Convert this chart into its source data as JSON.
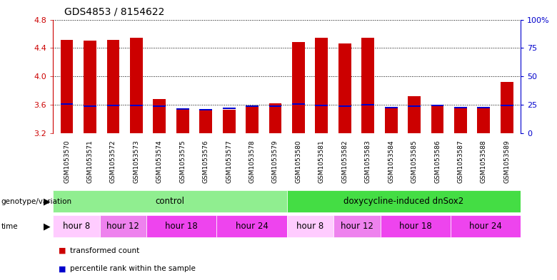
{
  "title": "GDS4853 / 8154622",
  "samples": [
    "GSM1053570",
    "GSM1053571",
    "GSM1053572",
    "GSM1053573",
    "GSM1053574",
    "GSM1053575",
    "GSM1053576",
    "GSM1053577",
    "GSM1053578",
    "GSM1053579",
    "GSM1053580",
    "GSM1053581",
    "GSM1053582",
    "GSM1053583",
    "GSM1053584",
    "GSM1053585",
    "GSM1053586",
    "GSM1053587",
    "GSM1053588",
    "GSM1053589"
  ],
  "red_values": [
    4.52,
    4.51,
    4.52,
    4.55,
    3.68,
    3.53,
    3.53,
    3.53,
    3.58,
    3.62,
    4.49,
    4.55,
    4.46,
    4.55,
    3.57,
    3.72,
    3.6,
    3.57,
    3.56,
    3.92
  ],
  "blue_values": [
    3.6,
    3.57,
    3.58,
    3.58,
    3.57,
    3.53,
    3.52,
    3.54,
    3.57,
    3.57,
    3.6,
    3.58,
    3.57,
    3.59,
    3.55,
    3.57,
    3.58,
    3.55,
    3.55,
    3.58
  ],
  "y_min": 3.2,
  "y_max": 4.8,
  "y_ticks": [
    3.2,
    3.6,
    4.0,
    4.4,
    4.8
  ],
  "y2_ticks": [
    0,
    25,
    50,
    75,
    100
  ],
  "y2_tick_labels": [
    "0",
    "25",
    "50",
    "75",
    "100%"
  ],
  "grid_lines": [
    3.6,
    4.0,
    4.4,
    4.8
  ],
  "genotype_groups": [
    {
      "label": "control",
      "start": 0,
      "end": 9,
      "color": "#90ee90"
    },
    {
      "label": "doxycycline-induced dnSox2",
      "start": 10,
      "end": 19,
      "color": "#44dd44"
    }
  ],
  "time_groups": [
    {
      "label": "hour 8",
      "start": 0,
      "end": 1,
      "color": "#ffccff"
    },
    {
      "label": "hour 12",
      "start": 2,
      "end": 3,
      "color": "#ee82ee"
    },
    {
      "label": "hour 18",
      "start": 4,
      "end": 6,
      "color": "#ee44ee"
    },
    {
      "label": "hour 24",
      "start": 7,
      "end": 9,
      "color": "#ee44ee"
    },
    {
      "label": "hour 8",
      "start": 10,
      "end": 11,
      "color": "#ffccff"
    },
    {
      "label": "hour 12",
      "start": 12,
      "end": 13,
      "color": "#ee82ee"
    },
    {
      "label": "hour 18",
      "start": 14,
      "end": 16,
      "color": "#ee44ee"
    },
    {
      "label": "hour 24",
      "start": 17,
      "end": 19,
      "color": "#ee44ee"
    }
  ],
  "bar_width": 0.55,
  "red_color": "#cc0000",
  "blue_color": "#0000cc",
  "axis_label_color": "#cc0000",
  "axis_label_color2": "#0000cc",
  "bg_gray": "#c8c8c8",
  "legend_items": [
    {
      "label": "transformed count",
      "color": "#cc0000"
    },
    {
      "label": "percentile rank within the sample",
      "color": "#0000cc"
    }
  ]
}
